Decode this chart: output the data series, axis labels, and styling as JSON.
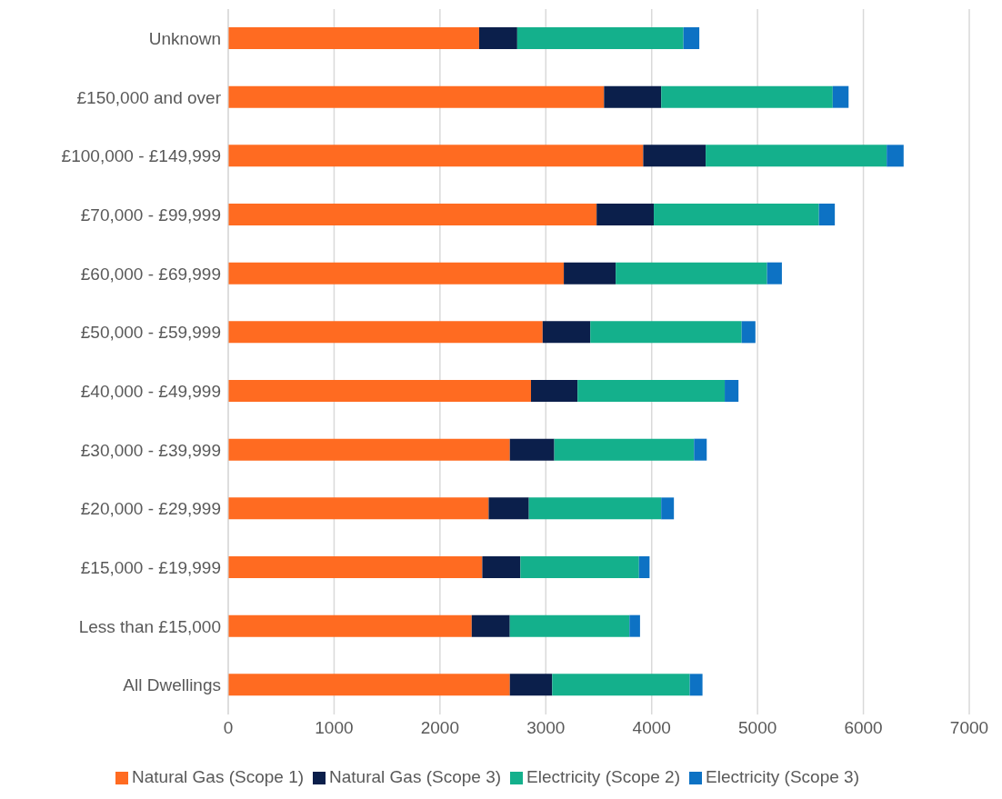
{
  "chart_data": {
    "type": "bar",
    "orientation": "horizontal",
    "stacked": true,
    "categories": [
      "Unknown",
      "£150,000 and over",
      "£100,000 - £149,999",
      "£70,000 - £99,999",
      "£60,000 - £69,999",
      "£50,000 - £59,999",
      "£40,000 - £49,999",
      "£30,000 - £39,999",
      "£20,000 - £29,999",
      "£15,000 - £19,999",
      "Less than £15,000",
      "All Dwellings"
    ],
    "series": [
      {
        "name": "Natural Gas (Scope 1)",
        "color": "#ff6b21",
        "values": [
          2370,
          3550,
          3920,
          3480,
          3170,
          2970,
          2860,
          2660,
          2460,
          2400,
          2300,
          2660
        ]
      },
      {
        "name": "Natural Gas (Scope 3)",
        "color": "#0b1f4b",
        "values": [
          360,
          540,
          590,
          540,
          490,
          450,
          440,
          420,
          380,
          360,
          360,
          400
        ]
      },
      {
        "name": "Electricity (Scope 2)",
        "color": "#14b08c",
        "values": [
          1570,
          1620,
          1710,
          1560,
          1430,
          1430,
          1390,
          1320,
          1250,
          1120,
          1130,
          1300
        ]
      },
      {
        "name": "Electricity (Scope 3)",
        "color": "#0d72c4",
        "values": [
          150,
          150,
          160,
          150,
          140,
          130,
          130,
          120,
          120,
          100,
          100,
          120
        ]
      }
    ],
    "xlim": [
      0,
      7000
    ],
    "xticks": [
      0,
      1000,
      2000,
      3000,
      4000,
      5000,
      6000,
      7000
    ],
    "grid": "x",
    "legend": "bottom"
  }
}
